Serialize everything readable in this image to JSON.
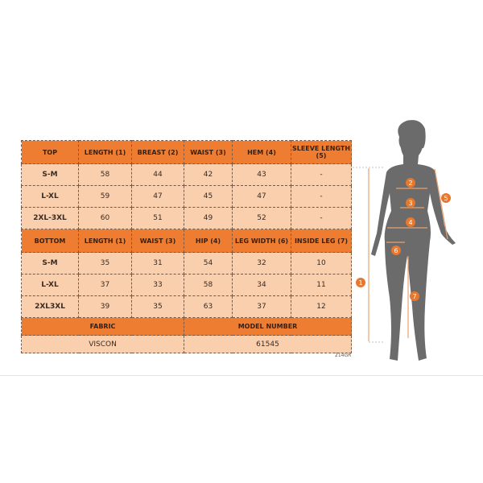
{
  "top": {
    "headers": [
      "TOP",
      "LENGTH (1)",
      "BREAST (2)",
      "WAIST (3)",
      "HEM (4)",
      "SLEEVE LENGTH (5)"
    ],
    "rows": [
      [
        "S-M",
        "58",
        "44",
        "42",
        "43",
        "-"
      ],
      [
        "L-XL",
        "59",
        "47",
        "45",
        "47",
        "-"
      ],
      [
        "2XL-3XL",
        "60",
        "51",
        "49",
        "52",
        "-"
      ]
    ]
  },
  "bottom": {
    "headers": [
      "BOTTOM",
      "LENGTH (1)",
      "WAIST (3)",
      "HIP (4)",
      "LEG WIDTH (6)",
      "INSIDE LEG (7)"
    ],
    "rows": [
      [
        "S-M",
        "35",
        "31",
        "54",
        "32",
        "10"
      ],
      [
        "L-XL",
        "37",
        "33",
        "58",
        "34",
        "11"
      ],
      [
        "2XL3XL",
        "39",
        "35",
        "63",
        "37",
        "12"
      ]
    ]
  },
  "footer": {
    "fabric_label": "FABRIC",
    "fabric_value": "VISCON",
    "model_label": "MODEL NUMBER",
    "model_value": "61545"
  },
  "code": "214GR",
  "figure": {
    "markers": [
      "1",
      "2",
      "3",
      "4",
      "5",
      "6",
      "7"
    ]
  },
  "colors": {
    "header": "#ee7d31",
    "cell": "#f9cfae",
    "silhouette": "#6b6b6b",
    "marker": "#e8782c"
  }
}
